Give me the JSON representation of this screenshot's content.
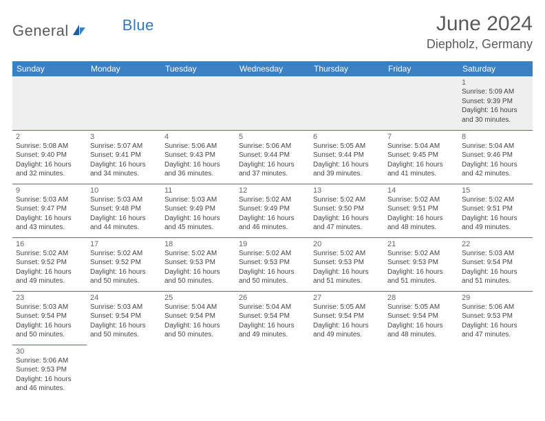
{
  "logo": {
    "general": "General",
    "blue": "Blue"
  },
  "title": "June 2024",
  "location": "Diepholz, Germany",
  "colors": {
    "header_bg": "#3a80c4",
    "header_text": "#ffffff",
    "border": "#2d78bd",
    "empty_bg": "#efefef",
    "text": "#444444",
    "logo_gray": "#5a5a5a",
    "logo_blue": "#2d78bd"
  },
  "weekdays": [
    "Sunday",
    "Monday",
    "Tuesday",
    "Wednesday",
    "Thursday",
    "Friday",
    "Saturday"
  ],
  "weeks": [
    [
      null,
      null,
      null,
      null,
      null,
      null,
      {
        "n": "1",
        "sr": "5:09 AM",
        "ss": "9:39 PM",
        "dl": "16 hours and 30 minutes."
      }
    ],
    [
      {
        "n": "2",
        "sr": "5:08 AM",
        "ss": "9:40 PM",
        "dl": "16 hours and 32 minutes."
      },
      {
        "n": "3",
        "sr": "5:07 AM",
        "ss": "9:41 PM",
        "dl": "16 hours and 34 minutes."
      },
      {
        "n": "4",
        "sr": "5:06 AM",
        "ss": "9:43 PM",
        "dl": "16 hours and 36 minutes."
      },
      {
        "n": "5",
        "sr": "5:06 AM",
        "ss": "9:44 PM",
        "dl": "16 hours and 37 minutes."
      },
      {
        "n": "6",
        "sr": "5:05 AM",
        "ss": "9:44 PM",
        "dl": "16 hours and 39 minutes."
      },
      {
        "n": "7",
        "sr": "5:04 AM",
        "ss": "9:45 PM",
        "dl": "16 hours and 41 minutes."
      },
      {
        "n": "8",
        "sr": "5:04 AM",
        "ss": "9:46 PM",
        "dl": "16 hours and 42 minutes."
      }
    ],
    [
      {
        "n": "9",
        "sr": "5:03 AM",
        "ss": "9:47 PM",
        "dl": "16 hours and 43 minutes."
      },
      {
        "n": "10",
        "sr": "5:03 AM",
        "ss": "9:48 PM",
        "dl": "16 hours and 44 minutes."
      },
      {
        "n": "11",
        "sr": "5:03 AM",
        "ss": "9:49 PM",
        "dl": "16 hours and 45 minutes."
      },
      {
        "n": "12",
        "sr": "5:02 AM",
        "ss": "9:49 PM",
        "dl": "16 hours and 46 minutes."
      },
      {
        "n": "13",
        "sr": "5:02 AM",
        "ss": "9:50 PM",
        "dl": "16 hours and 47 minutes."
      },
      {
        "n": "14",
        "sr": "5:02 AM",
        "ss": "9:51 PM",
        "dl": "16 hours and 48 minutes."
      },
      {
        "n": "15",
        "sr": "5:02 AM",
        "ss": "9:51 PM",
        "dl": "16 hours and 49 minutes."
      }
    ],
    [
      {
        "n": "16",
        "sr": "5:02 AM",
        "ss": "9:52 PM",
        "dl": "16 hours and 49 minutes."
      },
      {
        "n": "17",
        "sr": "5:02 AM",
        "ss": "9:52 PM",
        "dl": "16 hours and 50 minutes."
      },
      {
        "n": "18",
        "sr": "5:02 AM",
        "ss": "9:53 PM",
        "dl": "16 hours and 50 minutes."
      },
      {
        "n": "19",
        "sr": "5:02 AM",
        "ss": "9:53 PM",
        "dl": "16 hours and 50 minutes."
      },
      {
        "n": "20",
        "sr": "5:02 AM",
        "ss": "9:53 PM",
        "dl": "16 hours and 51 minutes."
      },
      {
        "n": "21",
        "sr": "5:02 AM",
        "ss": "9:53 PM",
        "dl": "16 hours and 51 minutes."
      },
      {
        "n": "22",
        "sr": "5:03 AM",
        "ss": "9:54 PM",
        "dl": "16 hours and 51 minutes."
      }
    ],
    [
      {
        "n": "23",
        "sr": "5:03 AM",
        "ss": "9:54 PM",
        "dl": "16 hours and 50 minutes."
      },
      {
        "n": "24",
        "sr": "5:03 AM",
        "ss": "9:54 PM",
        "dl": "16 hours and 50 minutes."
      },
      {
        "n": "25",
        "sr": "5:04 AM",
        "ss": "9:54 PM",
        "dl": "16 hours and 50 minutes."
      },
      {
        "n": "26",
        "sr": "5:04 AM",
        "ss": "9:54 PM",
        "dl": "16 hours and 49 minutes."
      },
      {
        "n": "27",
        "sr": "5:05 AM",
        "ss": "9:54 PM",
        "dl": "16 hours and 49 minutes."
      },
      {
        "n": "28",
        "sr": "5:05 AM",
        "ss": "9:54 PM",
        "dl": "16 hours and 48 minutes."
      },
      {
        "n": "29",
        "sr": "5:06 AM",
        "ss": "9:53 PM",
        "dl": "16 hours and 47 minutes."
      }
    ],
    [
      {
        "n": "30",
        "sr": "5:06 AM",
        "ss": "9:53 PM",
        "dl": "16 hours and 46 minutes."
      },
      null,
      null,
      null,
      null,
      null,
      null
    ]
  ],
  "labels": {
    "sunrise": "Sunrise: ",
    "sunset": "Sunset: ",
    "daylight": "Daylight: "
  }
}
